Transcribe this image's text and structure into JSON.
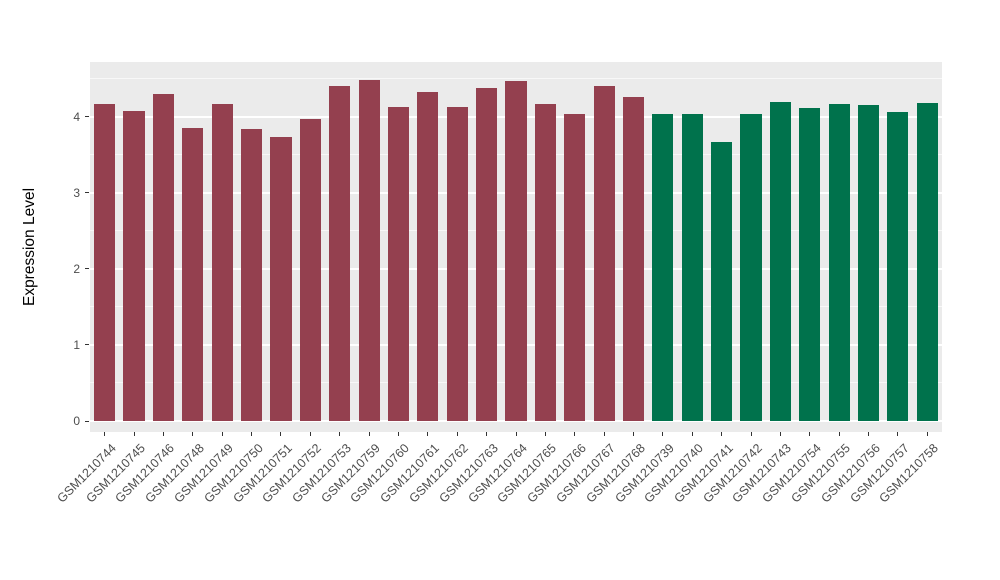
{
  "chart_data": {
    "type": "bar",
    "title": "",
    "xlabel": "",
    "ylabel": "Expression Level",
    "ylim": [
      0,
      4.72
    ],
    "yticks": [
      0,
      1,
      2,
      3,
      4
    ],
    "grid": "major and minor horizontal white gridlines on gray panel",
    "legend_position": "none",
    "panel_bg": "#EBEBEB",
    "grid_color": "#FFFFFF",
    "tick_label_color": "#4D4D4D",
    "x_tick_label_rotation_deg": 45,
    "group_colors": {
      "maroon": "#94404F",
      "green": "#00724C"
    },
    "categories": [
      "GSM1210744",
      "GSM1210745",
      "GSM1210746",
      "GSM1210748",
      "GSM1210749",
      "GSM1210750",
      "GSM1210751",
      "GSM1210752",
      "GSM1210753",
      "GSM1210759",
      "GSM1210760",
      "GSM1210761",
      "GSM1210762",
      "GSM1210763",
      "GSM1210764",
      "GSM1210765",
      "GSM1210766",
      "GSM1210767",
      "GSM1210768",
      "GSM1210739",
      "GSM1210740",
      "GSM1210741",
      "GSM1210742",
      "GSM1210743",
      "GSM1210754",
      "GSM1210755",
      "GSM1210756",
      "GSM1210757",
      "GSM1210758"
    ],
    "values": [
      4.17,
      4.08,
      4.3,
      3.85,
      4.17,
      3.84,
      3.74,
      3.97,
      4.4,
      4.49,
      4.13,
      4.33,
      4.13,
      4.38,
      4.47,
      4.17,
      4.04,
      4.41,
      4.26,
      4.04,
      4.04,
      3.67,
      4.04,
      4.19,
      4.11,
      4.17,
      4.16,
      4.06,
      4.18
    ],
    "groups": [
      "maroon",
      "maroon",
      "maroon",
      "maroon",
      "maroon",
      "maroon",
      "maroon",
      "maroon",
      "maroon",
      "maroon",
      "maroon",
      "maroon",
      "maroon",
      "maroon",
      "maroon",
      "maroon",
      "maroon",
      "maroon",
      "maroon",
      "green",
      "green",
      "green",
      "green",
      "green",
      "green",
      "green",
      "green",
      "green",
      "green"
    ]
  }
}
